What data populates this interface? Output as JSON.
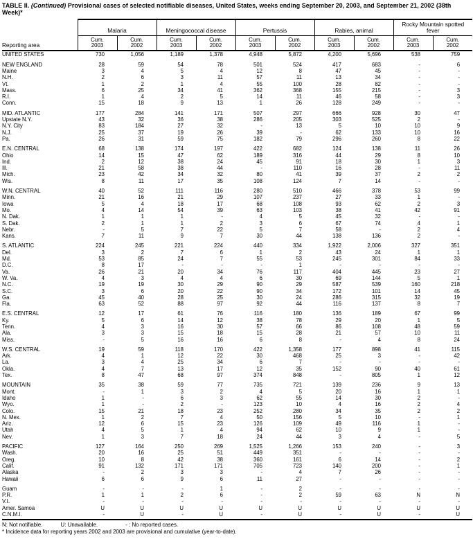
{
  "title": {
    "prefix": "TABLE II.",
    "continued": "(Continued)",
    "rest": "Provisional cases of selected notifiable diseases, United States, weeks ending September 20, 2003, and September 21, 2002",
    "line2": "(38th Week)*"
  },
  "table": {
    "reporting_area_label": "Reporting area",
    "cum_label": "Cum.",
    "years": [
      "2003",
      "2002"
    ],
    "groups": [
      {
        "label": "Malaria"
      },
      {
        "label": "Meningococcal disease"
      },
      {
        "label": "Pertussis"
      },
      {
        "label": "Rabies, animal"
      },
      {
        "label": "Rocky Mountain spotted fever"
      }
    ],
    "rows": [
      {
        "label": "UNITED STATES",
        "type": "total",
        "gap": false,
        "values": [
          "730",
          "1,056",
          "1,189",
          "1,378",
          "4,948",
          "5,872",
          "4,200",
          "5,696",
          "538",
          "759"
        ]
      },
      {
        "label": "NEW ENGLAND",
        "type": "region",
        "gap": true,
        "values": [
          "28",
          "59",
          "54",
          "78",
          "501",
          "524",
          "417",
          "683",
          "-",
          "6"
        ]
      },
      {
        "label": "Maine",
        "type": "state",
        "gap": false,
        "values": [
          "3",
          "4",
          "5",
          "4",
          "12",
          "8",
          "47",
          "45",
          "-",
          "-"
        ]
      },
      {
        "label": "N.H.",
        "type": "state",
        "gap": false,
        "values": [
          "2",
          "6",
          "3",
          "11",
          "57",
          "11",
          "13",
          "34",
          "-",
          "-"
        ]
      },
      {
        "label": "Vt.",
        "type": "state",
        "gap": false,
        "values": [
          "1",
          "2",
          "1",
          "4",
          "55",
          "100",
          "28",
          "82",
          "-",
          "-"
        ]
      },
      {
        "label": "Mass.",
        "type": "state",
        "gap": false,
        "values": [
          "6",
          "25",
          "34",
          "41",
          "362",
          "368",
          "155",
          "215",
          "-",
          "3"
        ]
      },
      {
        "label": "R.I.",
        "type": "state",
        "gap": false,
        "values": [
          "1",
          "4",
          "2",
          "5",
          "14",
          "11",
          "46",
          "58",
          "-",
          "3"
        ]
      },
      {
        "label": "Conn.",
        "type": "state",
        "gap": false,
        "values": [
          "15",
          "18",
          "9",
          "13",
          "1",
          "26",
          "128",
          "249",
          "-",
          "-"
        ]
      },
      {
        "label": "MID. ATLANTIC",
        "type": "region",
        "gap": true,
        "values": [
          "177",
          "284",
          "141",
          "171",
          "507",
          "297",
          "666",
          "928",
          "30",
          "47"
        ]
      },
      {
        "label": "Upstate N.Y.",
        "type": "state",
        "gap": false,
        "values": [
          "43",
          "32",
          "36",
          "38",
          "286",
          "205",
          "303",
          "525",
          "2",
          "-"
        ]
      },
      {
        "label": "N.Y. City",
        "type": "state",
        "gap": false,
        "values": [
          "83",
          "184",
          "27",
          "32",
          "-",
          "13",
          "5",
          "10",
          "10",
          "9"
        ]
      },
      {
        "label": "N.J.",
        "type": "state",
        "gap": false,
        "values": [
          "25",
          "37",
          "19",
          "26",
          "39",
          "-",
          "62",
          "133",
          "10",
          "16"
        ]
      },
      {
        "label": "Pa.",
        "type": "state",
        "gap": false,
        "values": [
          "26",
          "31",
          "59",
          "75",
          "182",
          "79",
          "296",
          "260",
          "8",
          "22"
        ]
      },
      {
        "label": "E.N. CENTRAL",
        "type": "region",
        "gap": true,
        "values": [
          "68",
          "138",
          "174",
          "197",
          "422",
          "682",
          "124",
          "138",
          "11",
          "26"
        ]
      },
      {
        "label": "Ohio",
        "type": "state",
        "gap": false,
        "values": [
          "14",
          "15",
          "47",
          "62",
          "189",
          "316",
          "44",
          "29",
          "8",
          "10"
        ]
      },
      {
        "label": "Ind.",
        "type": "state",
        "gap": false,
        "values": [
          "2",
          "12",
          "38",
          "24",
          "45",
          "91",
          "18",
          "30",
          "1",
          "3"
        ]
      },
      {
        "label": "Ill.",
        "type": "state",
        "gap": false,
        "values": [
          "21",
          "58",
          "38",
          "44",
          "-",
          "110",
          "16",
          "28",
          "-",
          "11"
        ]
      },
      {
        "label": "Mich.",
        "type": "state",
        "gap": false,
        "values": [
          "23",
          "42",
          "34",
          "32",
          "80",
          "41",
          "39",
          "37",
          "2",
          "2"
        ]
      },
      {
        "label": "Wis.",
        "type": "state",
        "gap": false,
        "values": [
          "8",
          "11",
          "17",
          "35",
          "108",
          "124",
          "7",
          "14",
          "-",
          "-"
        ]
      },
      {
        "label": "W.N. CENTRAL",
        "type": "region",
        "gap": true,
        "values": [
          "40",
          "52",
          "111",
          "116",
          "280",
          "510",
          "466",
          "378",
          "53",
          "99"
        ]
      },
      {
        "label": "Minn.",
        "type": "state",
        "gap": false,
        "values": [
          "21",
          "16",
          "21",
          "29",
          "107",
          "237",
          "27",
          "33",
          "1",
          "-"
        ]
      },
      {
        "label": "Iowa",
        "type": "state",
        "gap": false,
        "values": [
          "5",
          "4",
          "18",
          "17",
          "68",
          "108",
          "93",
          "62",
          "2",
          "3"
        ]
      },
      {
        "label": "Mo.",
        "type": "state",
        "gap": false,
        "values": [
          "4",
          "14",
          "54",
          "39",
          "63",
          "103",
          "38",
          "41",
          "42",
          "91"
        ]
      },
      {
        "label": "N. Dak.",
        "type": "state",
        "gap": false,
        "values": [
          "1",
          "1",
          "1",
          "-",
          "4",
          "5",
          "45",
          "32",
          "-",
          "-"
        ]
      },
      {
        "label": "S. Dak.",
        "type": "state",
        "gap": false,
        "values": [
          "2",
          "1",
          "1",
          "2",
          "3",
          "6",
          "67",
          "74",
          "4",
          "1"
        ]
      },
      {
        "label": "Nebr.",
        "type": "state",
        "gap": false,
        "values": [
          "-",
          "5",
          "7",
          "22",
          "5",
          "7",
          "58",
          "-",
          "2",
          "4"
        ]
      },
      {
        "label": "Kans.",
        "type": "state",
        "gap": false,
        "values": [
          "7",
          "11",
          "9",
          "7",
          "30",
          "44",
          "138",
          "136",
          "2",
          "-"
        ]
      },
      {
        "label": "S. ATLANTIC",
        "type": "region",
        "gap": true,
        "values": [
          "224",
          "245",
          "221",
          "224",
          "440",
          "334",
          "1,922",
          "2,006",
          "327",
          "351"
        ]
      },
      {
        "label": "Del.",
        "type": "state",
        "gap": false,
        "values": [
          "3",
          "2",
          "7",
          "6",
          "1",
          "2",
          "43",
          "24",
          "1",
          "1"
        ]
      },
      {
        "label": "Md.",
        "type": "state",
        "gap": false,
        "values": [
          "53",
          "85",
          "24",
          "7",
          "55",
          "53",
          "245",
          "301",
          "84",
          "33"
        ]
      },
      {
        "label": "D.C.",
        "type": "state",
        "gap": false,
        "values": [
          "8",
          "17",
          "-",
          "-",
          "-",
          "1",
          "-",
          "-",
          "-",
          "-"
        ]
      },
      {
        "label": "Va.",
        "type": "state",
        "gap": false,
        "values": [
          "26",
          "21",
          "20",
          "34",
          "76",
          "117",
          "404",
          "445",
          "23",
          "27"
        ]
      },
      {
        "label": "W. Va.",
        "type": "state",
        "gap": false,
        "values": [
          "4",
          "3",
          "4",
          "4",
          "6",
          "30",
          "69",
          "144",
          "5",
          "1"
        ]
      },
      {
        "label": "N.C.",
        "type": "state",
        "gap": false,
        "values": [
          "19",
          "19",
          "30",
          "29",
          "90",
          "29",
          "587",
          "539",
          "160",
          "218"
        ]
      },
      {
        "label": "S.C.",
        "type": "state",
        "gap": false,
        "values": [
          "3",
          "6",
          "20",
          "22",
          "90",
          "34",
          "172",
          "101",
          "14",
          "45"
        ]
      },
      {
        "label": "Ga.",
        "type": "state",
        "gap": false,
        "values": [
          "45",
          "40",
          "28",
          "25",
          "30",
          "24",
          "286",
          "315",
          "32",
          "19"
        ]
      },
      {
        "label": "Fla.",
        "type": "state",
        "gap": false,
        "values": [
          "63",
          "52",
          "88",
          "97",
          "92",
          "44",
          "116",
          "137",
          "8",
          "7"
        ]
      },
      {
        "label": "E.S. CENTRAL",
        "type": "region",
        "gap": true,
        "values": [
          "12",
          "17",
          "61",
          "76",
          "116",
          "180",
          "136",
          "189",
          "67",
          "99"
        ]
      },
      {
        "label": "Ky.",
        "type": "state",
        "gap": false,
        "values": [
          "5",
          "6",
          "14",
          "12",
          "38",
          "78",
          "29",
          "20",
          "1",
          "5"
        ]
      },
      {
        "label": "Tenn.",
        "type": "state",
        "gap": false,
        "values": [
          "4",
          "3",
          "16",
          "30",
          "57",
          "66",
          "86",
          "108",
          "48",
          "59"
        ]
      },
      {
        "label": "Ala.",
        "type": "state",
        "gap": false,
        "values": [
          "3",
          "3",
          "15",
          "18",
          "15",
          "28",
          "21",
          "57",
          "10",
          "11"
        ]
      },
      {
        "label": "Miss.",
        "type": "state",
        "gap": false,
        "values": [
          "-",
          "5",
          "16",
          "16",
          "6",
          "8",
          "-",
          "4",
          "8",
          "24"
        ]
      },
      {
        "label": "W.S. CENTRAL",
        "type": "region",
        "gap": true,
        "values": [
          "19",
          "59",
          "118",
          "170",
          "422",
          "1,358",
          "177",
          "898",
          "41",
          "115"
        ]
      },
      {
        "label": "Ark.",
        "type": "state",
        "gap": false,
        "values": [
          "4",
          "1",
          "12",
          "22",
          "30",
          "468",
          "25",
          "3",
          "-",
          "42"
        ]
      },
      {
        "label": "La.",
        "type": "state",
        "gap": false,
        "values": [
          "3",
          "4",
          "25",
          "34",
          "6",
          "7",
          "-",
          "-",
          "-",
          "-"
        ]
      },
      {
        "label": "Okla.",
        "type": "state",
        "gap": false,
        "values": [
          "4",
          "7",
          "13",
          "17",
          "12",
          "35",
          "152",
          "90",
          "40",
          "61"
        ]
      },
      {
        "label": "Tex.",
        "type": "state",
        "gap": false,
        "values": [
          "8",
          "47",
          "68",
          "97",
          "374",
          "848",
          "-",
          "805",
          "1",
          "12"
        ]
      },
      {
        "label": "MOUNTAIN",
        "type": "region",
        "gap": true,
        "values": [
          "35",
          "38",
          "59",
          "77",
          "735",
          "721",
          "139",
          "236",
          "9",
          "13"
        ]
      },
      {
        "label": "Mont.",
        "type": "state",
        "gap": false,
        "values": [
          "-",
          "1",
          "3",
          "2",
          "4",
          "5",
          "20",
          "16",
          "1",
          "1"
        ]
      },
      {
        "label": "Idaho",
        "type": "state",
        "gap": false,
        "values": [
          "1",
          "-",
          "6",
          "3",
          "62",
          "55",
          "14",
          "30",
          "2",
          "-"
        ]
      },
      {
        "label": "Wyo.",
        "type": "state",
        "gap": false,
        "values": [
          "1",
          "-",
          "2",
          "-",
          "123",
          "10",
          "4",
          "16",
          "2",
          "4"
        ]
      },
      {
        "label": "Colo.",
        "type": "state",
        "gap": false,
        "values": [
          "15",
          "21",
          "18",
          "23",
          "252",
          "280",
          "34",
          "35",
          "2",
          "2"
        ]
      },
      {
        "label": "N. Mex.",
        "type": "state",
        "gap": false,
        "values": [
          "1",
          "2",
          "7",
          "4",
          "50",
          "156",
          "5",
          "10",
          "-",
          "1"
        ]
      },
      {
        "label": "Ariz.",
        "type": "state",
        "gap": false,
        "values": [
          "12",
          "6",
          "15",
          "23",
          "126",
          "109",
          "49",
          "116",
          "1",
          "-"
        ]
      },
      {
        "label": "Utah",
        "type": "state",
        "gap": false,
        "values": [
          "4",
          "5",
          "1",
          "4",
          "94",
          "62",
          "10",
          "9",
          "1",
          "-"
        ]
      },
      {
        "label": "Nev.",
        "type": "state",
        "gap": false,
        "values": [
          "1",
          "3",
          "7",
          "18",
          "24",
          "44",
          "3",
          "4",
          "-",
          "5"
        ]
      },
      {
        "label": "PACIFIC",
        "type": "region",
        "gap": true,
        "values": [
          "127",
          "164",
          "250",
          "269",
          "1,525",
          "1,266",
          "153",
          "240",
          "-",
          "3"
        ]
      },
      {
        "label": "Wash.",
        "type": "state",
        "gap": false,
        "values": [
          "20",
          "16",
          "25",
          "51",
          "449",
          "351",
          "-",
          "-",
          "-",
          "-"
        ]
      },
      {
        "label": "Oreg.",
        "type": "state",
        "gap": false,
        "values": [
          "10",
          "8",
          "42",
          "38",
          "360",
          "161",
          "6",
          "14",
          "-",
          "2"
        ]
      },
      {
        "label": "Calif.",
        "type": "state",
        "gap": false,
        "values": [
          "91",
          "132",
          "171",
          "171",
          "705",
          "723",
          "140",
          "200",
          "-",
          "1"
        ]
      },
      {
        "label": "Alaska",
        "type": "state",
        "gap": false,
        "values": [
          "-",
          "2",
          "3",
          "3",
          "-",
          "4",
          "7",
          "26",
          "-",
          "-"
        ]
      },
      {
        "label": "Hawaii",
        "type": "state",
        "gap": false,
        "values": [
          "6",
          "6",
          "9",
          "6",
          "11",
          "27",
          "-",
          "-",
          "-",
          "-"
        ]
      },
      {
        "label": "Guam",
        "type": "territory",
        "gap": true,
        "values": [
          "-",
          "-",
          "-",
          "1",
          "-",
          "2",
          "-",
          "-",
          "-",
          "-"
        ]
      },
      {
        "label": "P.R.",
        "type": "territory",
        "gap": false,
        "values": [
          "1",
          "1",
          "2",
          "6",
          "-",
          "2",
          "59",
          "63",
          "N",
          "N"
        ]
      },
      {
        "label": "V.I.",
        "type": "territory",
        "gap": false,
        "values": [
          "-",
          "-",
          "-",
          "-",
          "-",
          "-",
          "-",
          "-",
          "-",
          "-"
        ]
      },
      {
        "label": "Amer. Samoa",
        "type": "territory",
        "gap": false,
        "values": [
          "U",
          "U",
          "U",
          "U",
          "U",
          "U",
          "U",
          "U",
          "U",
          "U"
        ]
      },
      {
        "label": "C.N.M.I.",
        "type": "territory",
        "gap": false,
        "values": [
          "-",
          "U",
          "-",
          "U",
          "-",
          "U",
          "-",
          "U",
          "-",
          "U"
        ]
      }
    ]
  },
  "footnotes": {
    "n": "N: Not notifiable.",
    "u": "U: Unavailable.",
    "dash": "- : No reported cases.",
    "asterisk": "* Incidence data for reporting years 2002 and 2003 are provisional and cumulative (year-to-date)."
  }
}
